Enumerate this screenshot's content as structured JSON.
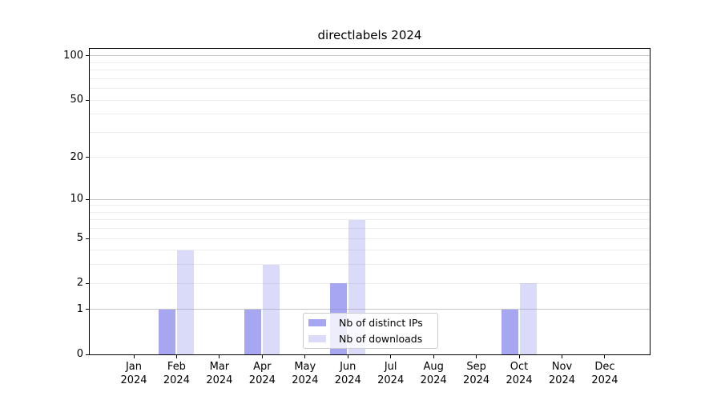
{
  "chart_data": {
    "type": "bar",
    "title": "directlabels 2024",
    "categories": [
      "Jan",
      "Feb",
      "Mar",
      "Apr",
      "May",
      "Jun",
      "Jul",
      "Aug",
      "Sep",
      "Oct",
      "Nov",
      "Dec"
    ],
    "year_suffix": "2024",
    "series": [
      {
        "name": "Nb of distinct IPs",
        "color": "rgba(132,132,235,0.72)",
        "values": [
          0,
          1,
          0,
          1,
          0,
          2,
          0,
          0,
          0,
          1,
          0,
          0
        ]
      },
      {
        "name": "Nb of downloads",
        "color": "rgba(132,132,235,0.30)",
        "values": [
          0,
          4,
          0,
          3,
          0,
          7,
          0,
          0,
          0,
          2,
          0,
          0
        ]
      }
    ],
    "y_scale": "log1p",
    "ylim": [
      0,
      112
    ],
    "y_tick_values": [
      0,
      1,
      2,
      5,
      10,
      20,
      50,
      100
    ],
    "y_major_gridlines": [
      1,
      10,
      100
    ],
    "y_minor_gridlines": [
      2,
      3,
      4,
      5,
      6,
      7,
      8,
      9,
      20,
      30,
      40,
      50,
      60,
      70,
      80,
      90
    ],
    "grid": true,
    "legend": {
      "position": "inside-bottom-center",
      "entries": [
        "Nb of distinct IPs",
        "Nb of downloads"
      ]
    }
  },
  "colors": {
    "background": "#ffffff",
    "axis": "#000000",
    "grid_minor": "#ececec",
    "grid_major": "#c6c6c6",
    "text": "#000000",
    "legend_border": "#cccccc",
    "legend_bg": "rgba(255,255,255,0.8)"
  }
}
